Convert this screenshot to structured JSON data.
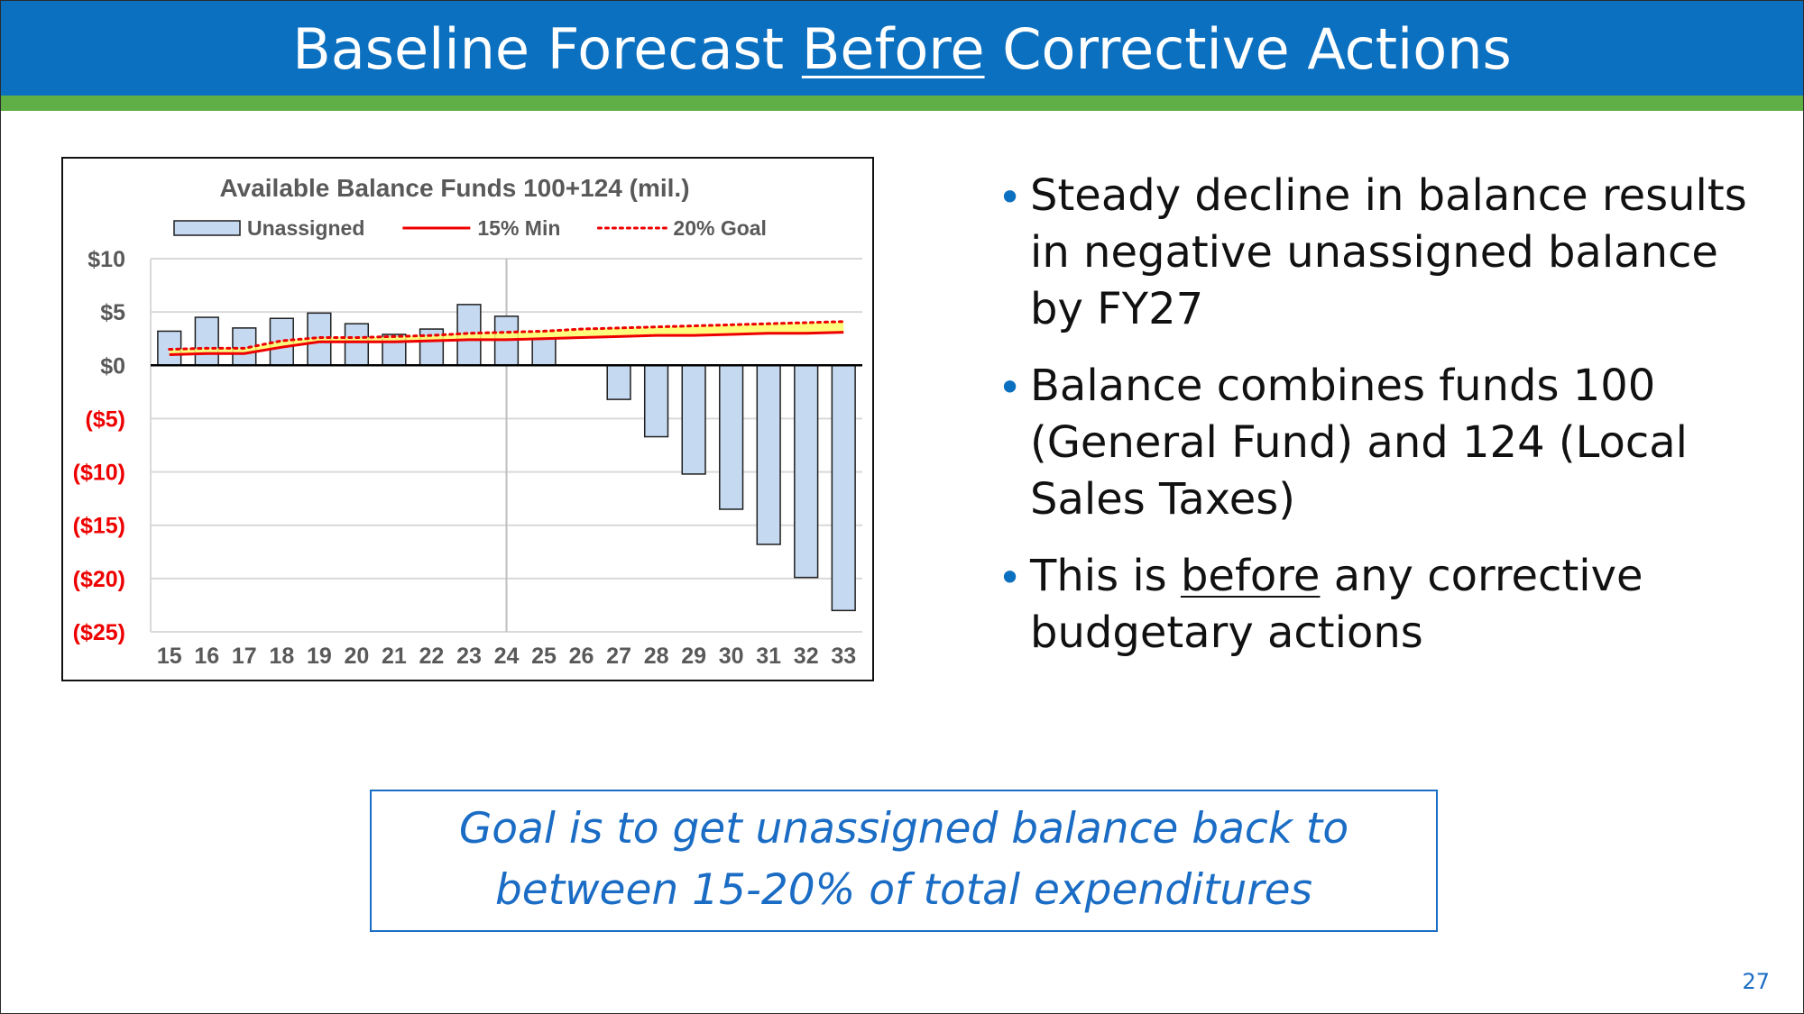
{
  "slide": {
    "title_pre": "Baseline Forecast ",
    "title_underlined": "Before",
    "title_post": " Corrective Actions",
    "page_number": "27",
    "colors": {
      "header": "#0c70c0",
      "accent_bar": "#5fae46",
      "bullet": "#0c70c0",
      "goal_text": "#1a6cc4"
    }
  },
  "bullets": [
    {
      "text": "Steady decline in balance results in negative unassigned balance by FY27"
    },
    {
      "text": "Balance combines funds 100 (General Fund) and 124 (Local Sales Taxes)"
    },
    {
      "pre": "This is ",
      "underlined": "before",
      "post": " any corrective budgetary actions"
    }
  ],
  "goal": {
    "line1": "Goal is to get unassigned balance back to",
    "line2": "between 15-20% of total expenditures"
  },
  "chart_data": {
    "type": "bar",
    "title": "Available Balance Funds 100+124 (mil.)",
    "categories": [
      "15",
      "16",
      "17",
      "18",
      "19",
      "20",
      "21",
      "22",
      "23",
      "24",
      "25",
      "26",
      "27",
      "28",
      "29",
      "30",
      "31",
      "32",
      "33"
    ],
    "ylim": [
      -25,
      10
    ],
    "yticks": [
      10,
      5,
      0,
      -5,
      -10,
      -15,
      -20,
      -25
    ],
    "ytick_labels": [
      "$10",
      "$5",
      "$0",
      "($5)",
      "($10)",
      "($15)",
      "($20)",
      "($25)"
    ],
    "negative_tick_color": "#ee0000",
    "grid": true,
    "reference_line_category": "24",
    "legend_position": "top",
    "series": [
      {
        "name": "Unassigned",
        "type": "bar",
        "color": "#c5d9f1",
        "values": [
          3.2,
          4.5,
          3.5,
          4.4,
          4.9,
          3.9,
          2.9,
          3.4,
          5.7,
          4.6,
          2.5,
          null,
          -3.2,
          -6.7,
          -10.2,
          -13.5,
          -16.8,
          -19.9,
          -23.0
        ]
      },
      {
        "name": "15% Min",
        "type": "line",
        "color": "#ee0000",
        "values": [
          1.0,
          1.1,
          1.1,
          1.7,
          2.2,
          2.2,
          2.2,
          2.3,
          2.4,
          2.4,
          2.5,
          2.6,
          2.7,
          2.8,
          2.8,
          2.9,
          3.0,
          3.0,
          3.1
        ]
      },
      {
        "name": "20% Goal",
        "type": "line",
        "dashed": true,
        "color": "#ee0000",
        "values": [
          1.5,
          1.6,
          1.6,
          2.3,
          2.6,
          2.6,
          2.7,
          2.8,
          3.0,
          3.1,
          3.2,
          3.4,
          3.5,
          3.6,
          3.7,
          3.8,
          3.9,
          4.0,
          4.1
        ]
      }
    ]
  }
}
